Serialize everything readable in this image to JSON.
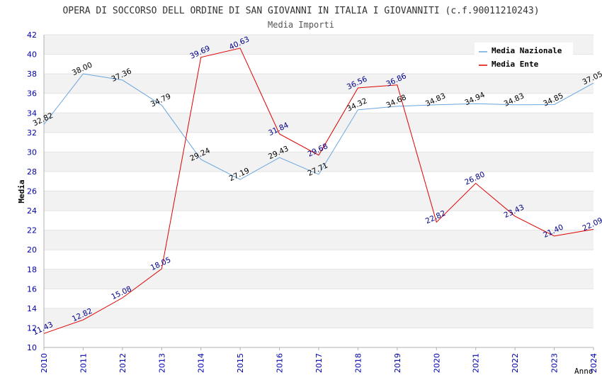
{
  "chart_data": {
    "type": "line",
    "title": "OPERA DI SOCCORSO DELL ORDINE DI SAN GIOVANNI IN ITALIA I GIOVANNITI (c.f.90011210243)",
    "subtitle": "Media Importi",
    "xlabel": "Anno",
    "ylabel": "Media",
    "ylim": [
      10,
      42
    ],
    "ytick_step": 2,
    "grid": true,
    "legend_position": "top-right",
    "categories": [
      "2010",
      "2011",
      "2012",
      "2013",
      "2014",
      "2015",
      "2016",
      "2017",
      "2018",
      "2019",
      "2020",
      "2021",
      "2022",
      "2023",
      "2024"
    ],
    "series": [
      {
        "name": "Media Nazionale",
        "color": "#6aa6e0",
        "label_color": "#000000",
        "values": [
          32.82,
          38.0,
          37.36,
          34.79,
          29.24,
          27.19,
          29.43,
          27.71,
          34.32,
          34.68,
          34.83,
          34.94,
          34.83,
          34.85,
          37.05
        ],
        "labels": [
          "32.82",
          "38.00",
          "37.36",
          "34.79",
          "29.24",
          "27.19",
          "29.43",
          "27.71",
          "34.32",
          "34.68",
          "34.83",
          "34.94",
          "34.83",
          "34.85",
          "37.05"
        ]
      },
      {
        "name": "Media Ente",
        "color": "#e00000",
        "label_color": "#000088",
        "values": [
          11.43,
          12.82,
          15.08,
          18.05,
          39.69,
          40.63,
          31.84,
          29.68,
          36.56,
          36.86,
          22.82,
          26.8,
          23.43,
          21.4,
          22.09
        ],
        "labels": [
          "11.43",
          "12.82",
          "15.08",
          "18.05",
          "39.69",
          "40.63",
          "31.84",
          "29.68",
          "36.56",
          "36.86",
          "22.82",
          "26.80",
          "23.43",
          "21.40",
          "22.09"
        ]
      }
    ]
  }
}
